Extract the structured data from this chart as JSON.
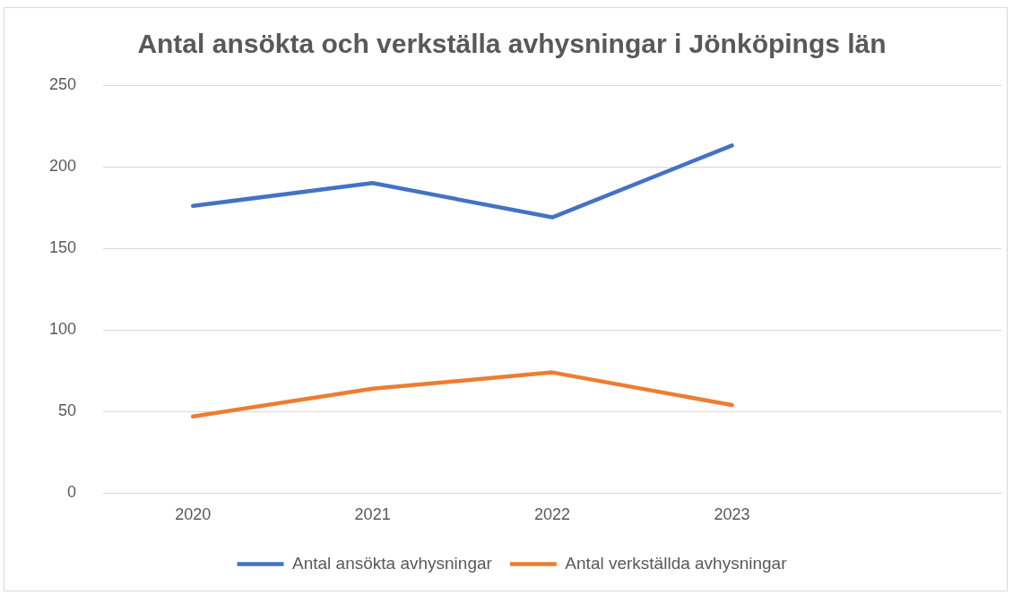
{
  "chart_data": {
    "type": "line",
    "title": "Antal ansökta och verkställa avhysningar i Jönköpings län",
    "categories": [
      "2020",
      "2021",
      "2022",
      "2023",
      null
    ],
    "series": [
      {
        "name": "Antal ansökta avhysningar",
        "color": "#4472c4",
        "values": [
          176,
          190,
          169,
          213,
          null
        ]
      },
      {
        "name": "Antal verkställda avhysningar",
        "color": "#ed7d31",
        "values": [
          47,
          64,
          74,
          54,
          null
        ]
      }
    ],
    "ylim": [
      0,
      250
    ],
    "yticks": [
      0,
      50,
      100,
      150,
      200,
      250
    ],
    "grid": "y",
    "legend": "bottom",
    "marker": "none",
    "line_style": "solid"
  }
}
